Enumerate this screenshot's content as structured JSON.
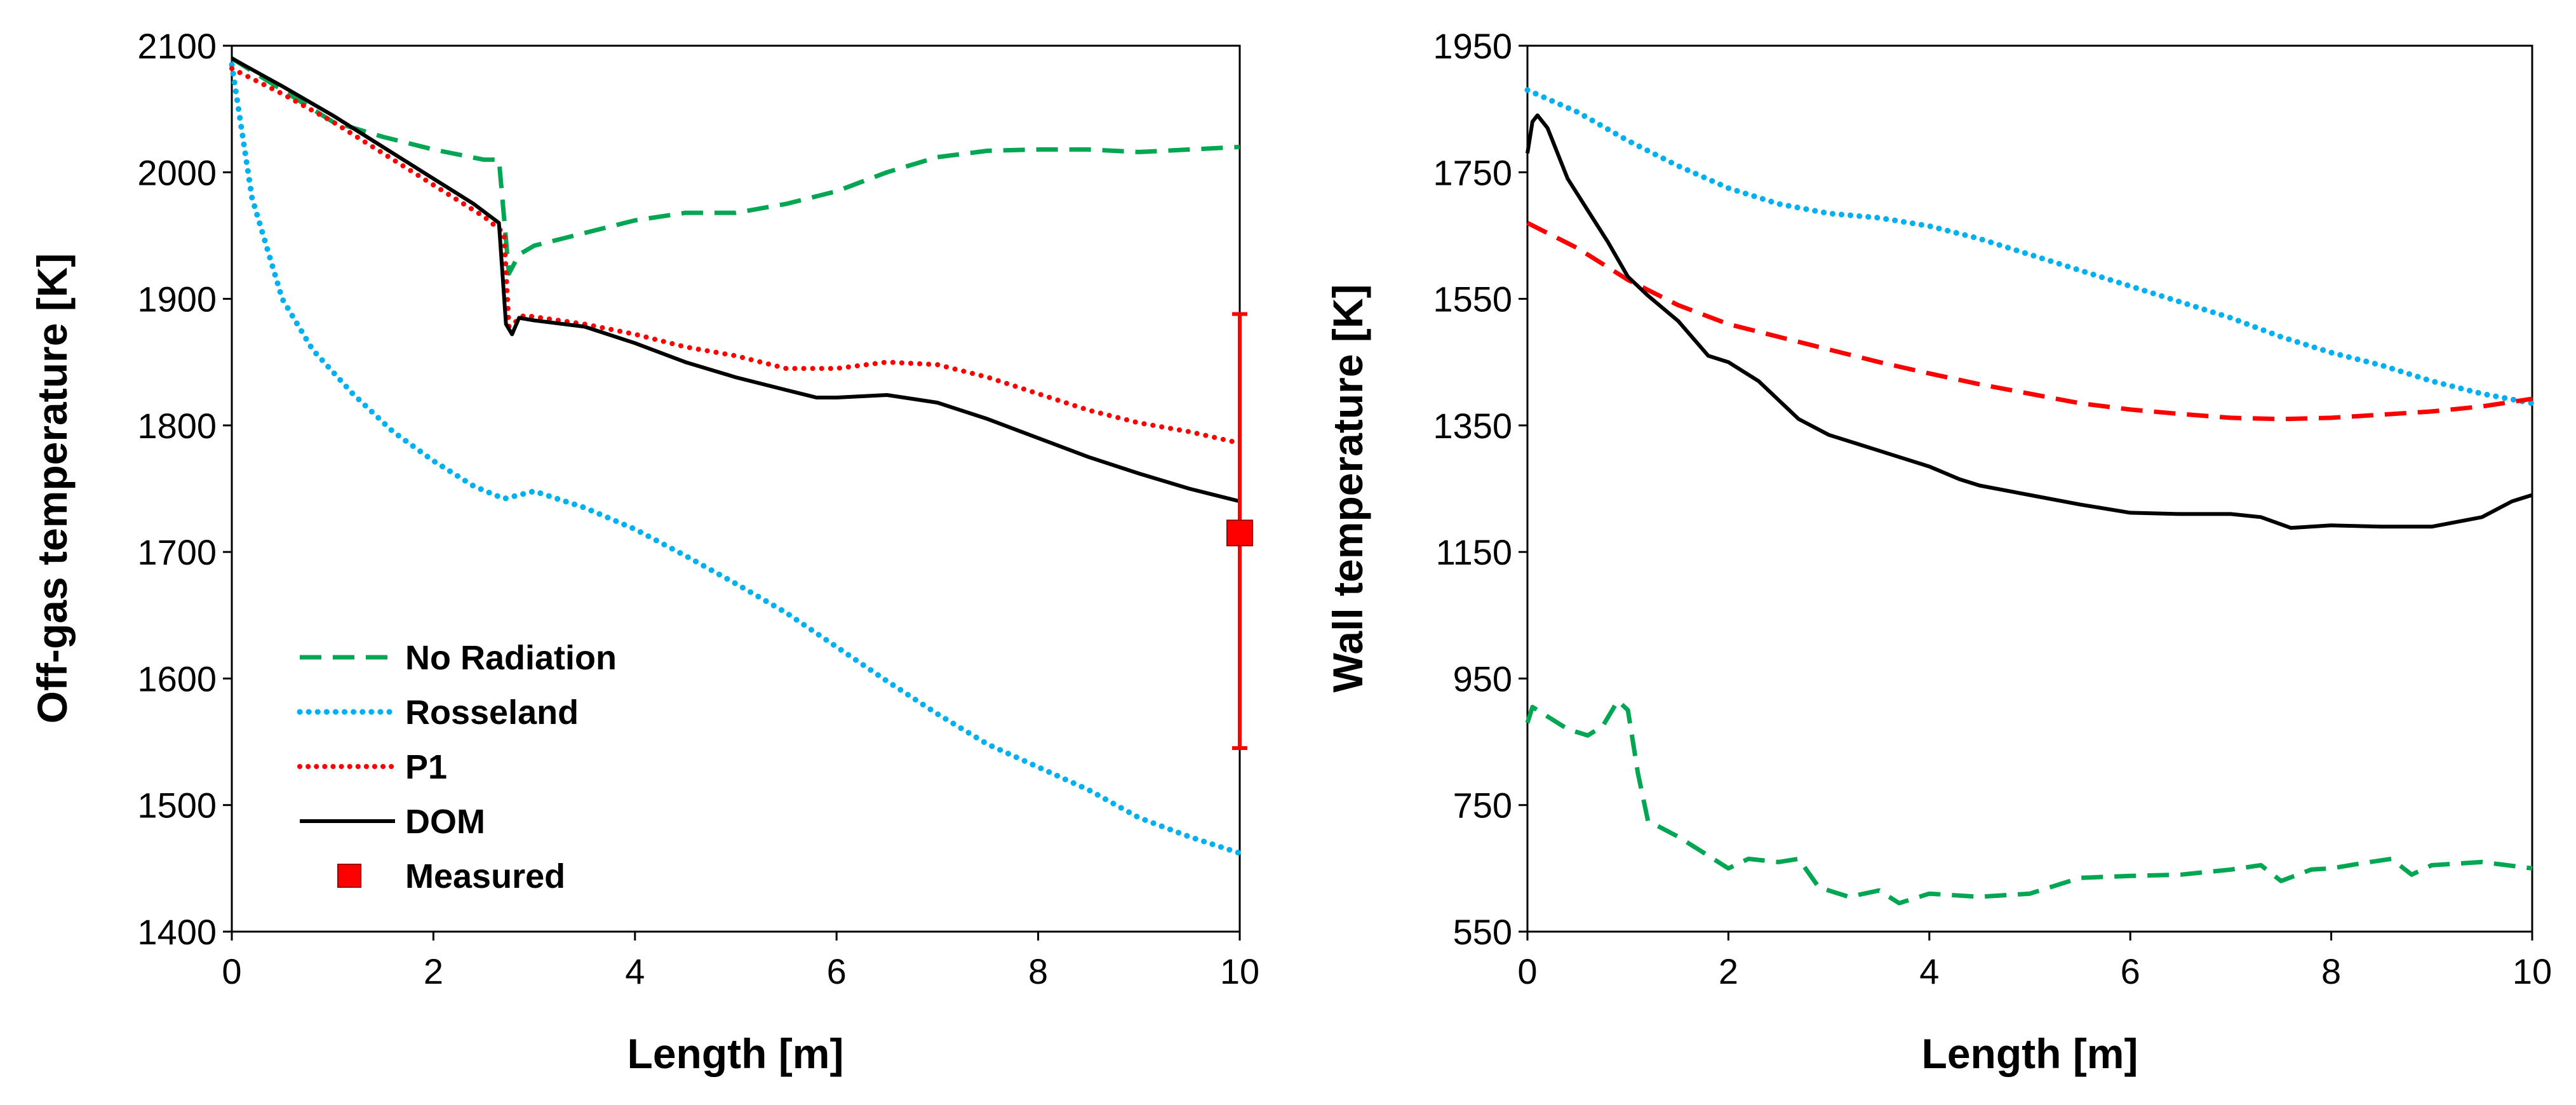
{
  "chart_data": [
    {
      "type": "line",
      "xlabel": "Length [m]",
      "ylabel": "Off-gas temperature [K]",
      "xlim": [
        0,
        10
      ],
      "ylim": [
        1400,
        2100
      ],
      "xticks": [
        0,
        2,
        4,
        6,
        8,
        10
      ],
      "yticks": [
        1400,
        1500,
        1600,
        1700,
        1800,
        1900,
        2000,
        2100
      ],
      "legend_position": "bottom-left",
      "series": [
        {
          "name": "No Radiation",
          "style": "dashed",
          "color": "#00a651",
          "points": [
            [
              0,
              2090
            ],
            [
              0.5,
              2065
            ],
            [
              1.0,
              2040
            ],
            [
              1.5,
              2028
            ],
            [
              2.0,
              2018
            ],
            [
              2.5,
              2010
            ],
            [
              2.65,
              2010
            ],
            [
              2.75,
              1920
            ],
            [
              2.85,
              1935
            ],
            [
              3.0,
              1942
            ],
            [
              3.5,
              1952
            ],
            [
              4.0,
              1962
            ],
            [
              4.5,
              1968
            ],
            [
              5.0,
              1968
            ],
            [
              5.5,
              1975
            ],
            [
              6.0,
              1985
            ],
            [
              6.5,
              2000
            ],
            [
              7.0,
              2012
            ],
            [
              7.5,
              2017
            ],
            [
              8.0,
              2018
            ],
            [
              8.5,
              2018
            ],
            [
              9.0,
              2016
            ],
            [
              9.5,
              2018
            ],
            [
              10,
              2020
            ]
          ]
        },
        {
          "name": "Rosseland",
          "style": "dotted",
          "color": "#00b0f0",
          "points": [
            [
              0,
              2085
            ],
            [
              0.2,
              1980
            ],
            [
              0.5,
              1900
            ],
            [
              0.8,
              1860
            ],
            [
              1.2,
              1825
            ],
            [
              1.6,
              1795
            ],
            [
              2.0,
              1772
            ],
            [
              2.4,
              1752
            ],
            [
              2.7,
              1742
            ],
            [
              3.0,
              1748
            ],
            [
              3.5,
              1735
            ],
            [
              4.0,
              1718
            ],
            [
              4.5,
              1697
            ],
            [
              5.0,
              1675
            ],
            [
              5.5,
              1652
            ],
            [
              6.0,
              1625
            ],
            [
              6.5,
              1598
            ],
            [
              7.0,
              1572
            ],
            [
              7.5,
              1548
            ],
            [
              8.0,
              1530
            ],
            [
              8.5,
              1512
            ],
            [
              9.0,
              1490
            ],
            [
              9.5,
              1475
            ],
            [
              10,
              1462
            ]
          ]
        },
        {
          "name": "P1",
          "style": "dotted",
          "color": "#ff0000",
          "points": [
            [
              0,
              2082
            ],
            [
              0.5,
              2062
            ],
            [
              1.0,
              2040
            ],
            [
              1.5,
              2015
            ],
            [
              2.0,
              1990
            ],
            [
              2.5,
              1965
            ],
            [
              2.7,
              1952
            ],
            [
              2.75,
              1878
            ],
            [
              2.9,
              1887
            ],
            [
              3.5,
              1880
            ],
            [
              4.0,
              1872
            ],
            [
              4.5,
              1862
            ],
            [
              5.0,
              1855
            ],
            [
              5.5,
              1845
            ],
            [
              6.0,
              1845
            ],
            [
              6.5,
              1850
            ],
            [
              7.0,
              1848
            ],
            [
              7.5,
              1838
            ],
            [
              8.0,
              1825
            ],
            [
              8.5,
              1812
            ],
            [
              9.0,
              1802
            ],
            [
              9.5,
              1795
            ],
            [
              10,
              1786
            ]
          ]
        },
        {
          "name": "DOM",
          "style": "solid",
          "color": "#000000",
          "points": [
            [
              0,
              2090
            ],
            [
              0.5,
              2068
            ],
            [
              1.0,
              2045
            ],
            [
              1.5,
              2020
            ],
            [
              2.0,
              1995
            ],
            [
              2.4,
              1975
            ],
            [
              2.65,
              1960
            ],
            [
              2.72,
              1880
            ],
            [
              2.78,
              1872
            ],
            [
              2.85,
              1885
            ],
            [
              3.0,
              1883
            ],
            [
              3.5,
              1878
            ],
            [
              4.0,
              1865
            ],
            [
              4.5,
              1850
            ],
            [
              5.0,
              1838
            ],
            [
              5.5,
              1828
            ],
            [
              5.8,
              1822
            ],
            [
              6.0,
              1822
            ],
            [
              6.5,
              1824
            ],
            [
              7.0,
              1818
            ],
            [
              7.5,
              1805
            ],
            [
              8.0,
              1790
            ],
            [
              8.5,
              1775
            ],
            [
              9.0,
              1762
            ],
            [
              9.5,
              1750
            ],
            [
              10,
              1740
            ]
          ]
        }
      ],
      "measured": {
        "name": "Measured",
        "x": 10,
        "y": 1715,
        "error_low": 1545,
        "error_high": 1888,
        "color": "#ff0000"
      }
    },
    {
      "type": "line",
      "xlabel": "Length [m]",
      "ylabel": "Wall temperature [K]",
      "xlim": [
        0,
        10
      ],
      "ylim": [
        550,
        1950
      ],
      "xticks": [
        0,
        2,
        4,
        6,
        8,
        10
      ],
      "yticks": [
        550,
        750,
        950,
        1150,
        1350,
        1550,
        1750,
        1950
      ],
      "series": [
        {
          "name": "No Radiation",
          "style": "dashed",
          "color": "#00a651",
          "points": [
            [
              0,
              880
            ],
            [
              0.05,
              905
            ],
            [
              0.2,
              890
            ],
            [
              0.4,
              870
            ],
            [
              0.6,
              860
            ],
            [
              0.75,
              875
            ],
            [
              0.9,
              915
            ],
            [
              1.0,
              900
            ],
            [
              1.1,
              800
            ],
            [
              1.2,
              725
            ],
            [
              1.5,
              700
            ],
            [
              1.8,
              670
            ],
            [
              2.0,
              650
            ],
            [
              2.2,
              665
            ],
            [
              2.5,
              660
            ],
            [
              2.7,
              665
            ],
            [
              2.9,
              620
            ],
            [
              3.2,
              605
            ],
            [
              3.5,
              615
            ],
            [
              3.7,
              595
            ],
            [
              4.0,
              610
            ],
            [
              4.5,
              605
            ],
            [
              5.0,
              610
            ],
            [
              5.5,
              635
            ],
            [
              6.0,
              638
            ],
            [
              6.5,
              640
            ],
            [
              7.0,
              648
            ],
            [
              7.3,
              655
            ],
            [
              7.5,
              630
            ],
            [
              7.8,
              648
            ],
            [
              8.0,
              650
            ],
            [
              8.3,
              658
            ],
            [
              8.6,
              665
            ],
            [
              8.8,
              640
            ],
            [
              9.0,
              655
            ],
            [
              9.5,
              660
            ],
            [
              10,
              650
            ]
          ]
        },
        {
          "name": "Rosseland",
          "style": "dotted",
          "color": "#00b0f0",
          "points": [
            [
              0,
              1880
            ],
            [
              0.5,
              1845
            ],
            [
              1.0,
              1800
            ],
            [
              1.5,
              1760
            ],
            [
              2.0,
              1725
            ],
            [
              2.5,
              1700
            ],
            [
              3.0,
              1685
            ],
            [
              3.5,
              1678
            ],
            [
              4.0,
              1665
            ],
            [
              4.5,
              1645
            ],
            [
              5.0,
              1620
            ],
            [
              5.5,
              1595
            ],
            [
              6.0,
              1570
            ],
            [
              6.5,
              1545
            ],
            [
              7.0,
              1520
            ],
            [
              7.5,
              1490
            ],
            [
              8.0,
              1465
            ],
            [
              8.5,
              1445
            ],
            [
              9.0,
              1420
            ],
            [
              9.5,
              1400
            ],
            [
              10,
              1385
            ]
          ]
        },
        {
          "name": "P1",
          "style": "dashed",
          "color": "#ff0000",
          "points": [
            [
              0,
              1670
            ],
            [
              0.5,
              1630
            ],
            [
              1.0,
              1580
            ],
            [
              1.5,
              1540
            ],
            [
              2.0,
              1510
            ],
            [
              2.5,
              1490
            ],
            [
              3.0,
              1470
            ],
            [
              3.5,
              1450
            ],
            [
              4.0,
              1432
            ],
            [
              4.5,
              1415
            ],
            [
              5.0,
              1400
            ],
            [
              5.5,
              1385
            ],
            [
              6.0,
              1375
            ],
            [
              6.5,
              1368
            ],
            [
              7.0,
              1362
            ],
            [
              7.5,
              1360
            ],
            [
              8.0,
              1362
            ],
            [
              8.5,
              1367
            ],
            [
              9.0,
              1372
            ],
            [
              9.5,
              1380
            ],
            [
              10,
              1392
            ]
          ]
        },
        {
          "name": "DOM",
          "style": "solid",
          "color": "#000000",
          "points": [
            [
              0,
              1780
            ],
            [
              0.05,
              1830
            ],
            [
              0.1,
              1840
            ],
            [
              0.2,
              1820
            ],
            [
              0.4,
              1740
            ],
            [
              0.6,
              1690
            ],
            [
              0.8,
              1640
            ],
            [
              1.0,
              1585
            ],
            [
              1.2,
              1555
            ],
            [
              1.5,
              1515
            ],
            [
              1.8,
              1460
            ],
            [
              2.0,
              1450
            ],
            [
              2.3,
              1420
            ],
            [
              2.5,
              1390
            ],
            [
              2.7,
              1360
            ],
            [
              3.0,
              1335
            ],
            [
              3.3,
              1320
            ],
            [
              3.5,
              1310
            ],
            [
              3.7,
              1300
            ],
            [
              4.0,
              1285
            ],
            [
              4.3,
              1265
            ],
            [
              4.5,
              1255
            ],
            [
              5.0,
              1240
            ],
            [
              5.5,
              1225
            ],
            [
              6.0,
              1212
            ],
            [
              6.5,
              1210
            ],
            [
              7.0,
              1210
            ],
            [
              7.3,
              1205
            ],
            [
              7.6,
              1188
            ],
            [
              7.8,
              1190
            ],
            [
              8.0,
              1192
            ],
            [
              8.5,
              1190
            ],
            [
              9.0,
              1190
            ],
            [
              9.5,
              1205
            ],
            [
              9.8,
              1230
            ],
            [
              10,
              1240
            ]
          ]
        }
      ]
    }
  ]
}
